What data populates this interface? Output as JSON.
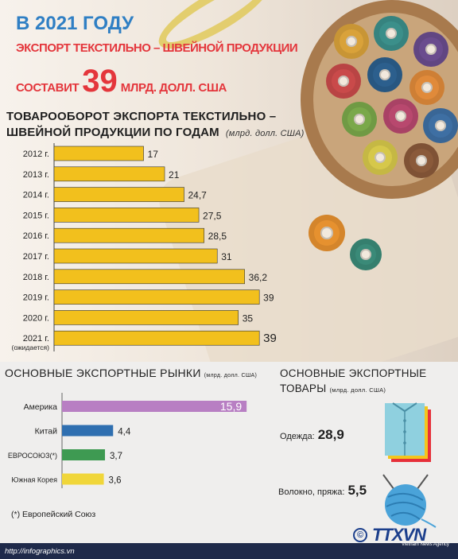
{
  "header": {
    "year_line": "В 2021 ГОДУ",
    "line1": "ЭКСПОРТ ТЕКСТИЛЬНО – ШВЕЙНОЙ ПРОДУКЦИИ",
    "line2_a": "СОСТАВИТ",
    "line2_num": "39",
    "line2_b": "МЛРД. ДОЛЛ. США"
  },
  "section": {
    "title_line1": "ТОВАРООБОРОТ ЭКСПОРТА ТЕКСТИЛЬНО –",
    "title_line2": "ШВЕЙНОЙ ПРОДУКЦИИ ПО ГОДАМ",
    "unit": "(млрд. долл. США)"
  },
  "chart_data": [
    {
      "type": "bar",
      "orientation": "horizontal",
      "categories": [
        "2012 г.",
        "2013 г.",
        "2014 г.",
        "2015 г.",
        "2016 г.",
        "2017 г.",
        "2018 г.",
        "2019 г.",
        "2020 г.",
        "2021 г."
      ],
      "category_notes": {
        "2021 г.": "(ожидается)"
      },
      "values": [
        17,
        21,
        24.7,
        27.5,
        28.5,
        31,
        36.2,
        39,
        35,
        39
      ],
      "value_labels": [
        "17",
        "21",
        "24,7",
        "27,5",
        "28,5",
        "31",
        "36,2",
        "39",
        "35",
        "39"
      ],
      "color": "#f2c01d",
      "xlim": [
        0,
        39
      ]
    },
    {
      "type": "bar",
      "orientation": "horizontal",
      "title": "ОСНОВНЫЕ ЭКСПОРТНЫЕ РЫНКИ",
      "unit": "(млрд. долл. США)",
      "categories": [
        "Америка",
        "Китай",
        "ЕВРОСОЮЗ(*)",
        "Южная Корея"
      ],
      "values": [
        15.9,
        4.4,
        3.7,
        3.6
      ],
      "value_labels": [
        "15,9",
        "4,4",
        "3,7",
        "3,6"
      ],
      "colors": [
        "#b87fc3",
        "#2f6fb0",
        "#3e9a52",
        "#f0d63a"
      ]
    }
  ],
  "markets": {
    "title": "ОСНОВНЫЕ ЭКСПОРТНЫЕ РЫНКИ",
    "unit": "(млрд. долл. США)",
    "footnote": "(*) Европейский Союз"
  },
  "goods": {
    "title_line1": "ОСНОВНЫЕ ЭКСПОРТНЫЕ",
    "title_line2": "ТОВАРЫ",
    "unit": "(млрд. долл. США)",
    "items": [
      {
        "label": "Одежда:",
        "value": "28,9",
        "icon": "shirt-icon"
      },
      {
        "label": "Волокно, пряжа:",
        "value": "5,5",
        "icon": "yarn-icon"
      }
    ]
  },
  "footer": {
    "url": "http://infographics.vn",
    "agency": "TTXVN",
    "agency_sub": "Vietnam News Agency",
    "copyright": "©"
  },
  "colors": {
    "headline_blue": "#2f7fc4",
    "headline_red": "#e4363c",
    "bar_yellow": "#f2c01d",
    "footer_navy": "#1f2a4a"
  }
}
